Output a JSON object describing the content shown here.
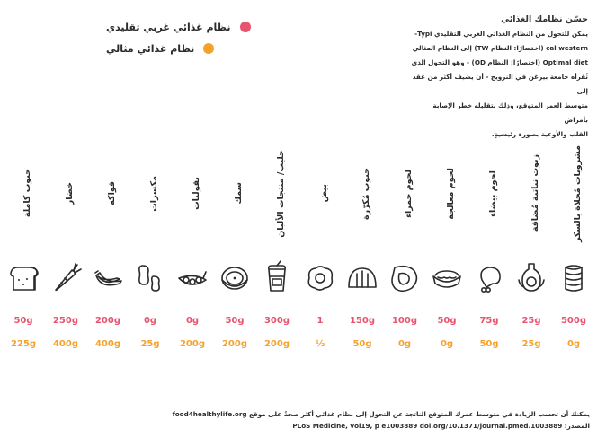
{
  "legend": {
    "traditional": {
      "label": "نظام غذائي غربي تقليدي",
      "color": "#e8546f"
    },
    "optimal": {
      "label": "نظام غذائي مثالي",
      "color": "#f4a22b"
    }
  },
  "intro": {
    "title": "حسّن نظامك الغذائي",
    "line1": "يمكن للتحول من النظام الغذائي الغربي التقليدي Typi-",
    "line2": "cal western (اختصارًا: النظام TW) إلى النظام المثالي",
    "line3": "Optimal diet (اختصارًا: النظام OD) - وهو التحول الذي",
    "line4": "ثُقرأه جامعة بيرغن في النرويج - أن يضيف أكثر من عقد إلى",
    "line5": "متوسط العمر المتوقع، وذلك بتقليله خطر الإصابة بأمراض",
    "line6": "القلب والأوعية بصورة رئيسيةٍ."
  },
  "foods": [
    {
      "name": "حبوب كاملة",
      "icon": "bread-icon",
      "traditional": "50g",
      "optimal": "225g"
    },
    {
      "name": "خضار",
      "icon": "carrot-icon",
      "traditional": "250g",
      "optimal": "400g"
    },
    {
      "name": "فواكه",
      "icon": "banana-icon",
      "traditional": "200g",
      "optimal": "400g"
    },
    {
      "name": "مكسرات",
      "icon": "peanut-icon",
      "traditional": "0g",
      "optimal": "25g"
    },
    {
      "name": "بقوليات",
      "icon": "peapod-icon",
      "traditional": "0g",
      "optimal": "200g"
    },
    {
      "name": "سمك",
      "icon": "fish-steak-icon",
      "traditional": "50g",
      "optimal": "200g"
    },
    {
      "name": "حليب/ منتجات الألبان",
      "icon": "milk-cup-icon",
      "traditional": "300g",
      "optimal": "200g"
    },
    {
      "name": "بيض",
      "icon": "fried-egg-icon",
      "traditional": "1",
      "optimal": "½"
    },
    {
      "name": "حبوب مُكرّرة",
      "icon": "refined-bread-icon",
      "traditional": "150g",
      "optimal": "50g"
    },
    {
      "name": "لحوم حمراء",
      "icon": "steak-icon",
      "traditional": "100g",
      "optimal": "0g"
    },
    {
      "name": "لحوم معالجة",
      "icon": "hotdog-icon",
      "traditional": "50g",
      "optimal": "0g"
    },
    {
      "name": "لحوم بيضاء",
      "icon": "drumstick-icon",
      "traditional": "75g",
      "optimal": "50g"
    },
    {
      "name": "زيوت نباتية مُضافة",
      "icon": "oil-bottle-icon",
      "traditional": "25g",
      "optimal": "25g"
    },
    {
      "name": "مشروبات مُحلاة بالسكر",
      "icon": "soda-can-icon",
      "traditional": "500g",
      "optimal": "0g"
    }
  ],
  "footer": {
    "line1": "يمكنك أن تحسب الزيادة في متوسط عمرك المتوقع الناتجة عن التحول إلى نظام غذائي أكثر صحةً على موقع food4healthylife.org",
    "line2": "المصدر: PLoS Medicine, vol19, p e1003889 doi.org/10.1371/journal.pmed.1003889"
  }
}
